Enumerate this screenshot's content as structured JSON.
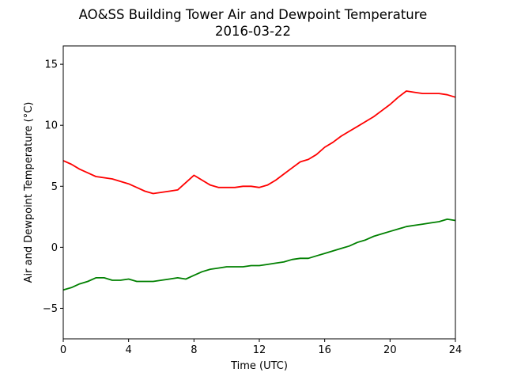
{
  "chart_data": {
    "type": "line",
    "title": "AO&SS Building Tower Air and Dewpoint Temperature",
    "subtitle": "2016-03-22",
    "xlabel": "Time (UTC)",
    "ylabel": "Air and Dewpoint Temperature (°C)",
    "xlim": [
      0,
      24
    ],
    "ylim": [
      -7.5,
      16.5
    ],
    "xticks": [
      0,
      4,
      8,
      12,
      16,
      20,
      24
    ],
    "yticks": [
      -5,
      0,
      5,
      10,
      15
    ],
    "grid": false,
    "series": [
      {
        "color": "#ff0000",
        "x": [
          0,
          0.5,
          1,
          1.5,
          2,
          2.5,
          3,
          3.5,
          4,
          4.5,
          5,
          5.5,
          6,
          6.5,
          7,
          7.5,
          8,
          8.5,
          9,
          9.5,
          10,
          10.5,
          11,
          11.5,
          12,
          12.5,
          13,
          13.5,
          14,
          14.5,
          15,
          15.5,
          16,
          16.5,
          17,
          17.5,
          18,
          18.5,
          19,
          19.5,
          20,
          20.5,
          21,
          21.5,
          22,
          22.5,
          23,
          23.5,
          24
        ],
        "y": [
          7.1,
          6.8,
          6.4,
          6.1,
          5.8,
          5.7,
          5.6,
          5.4,
          5.2,
          4.9,
          4.6,
          4.4,
          4.5,
          4.6,
          4.7,
          5.3,
          5.9,
          5.5,
          5.1,
          4.9,
          4.9,
          4.9,
          5.0,
          5.0,
          4.9,
          5.1,
          5.5,
          6.0,
          6.5,
          7.0,
          7.2,
          7.6,
          8.2,
          8.6,
          9.1,
          9.5,
          9.9,
          10.3,
          10.7,
          11.2,
          11.7,
          12.3,
          12.8,
          12.7,
          12.6,
          12.6,
          12.6,
          12.5,
          12.3
        ]
      },
      {
        "color": "#008000",
        "x": [
          0,
          0.5,
          1,
          1.5,
          2,
          2.5,
          3,
          3.5,
          4,
          4.5,
          5,
          5.5,
          6,
          6.5,
          7,
          7.5,
          8,
          8.5,
          9,
          9.5,
          10,
          10.5,
          11,
          11.5,
          12,
          12.5,
          13,
          13.5,
          14,
          14.5,
          15,
          15.5,
          16,
          16.5,
          17,
          17.5,
          18,
          18.5,
          19,
          19.5,
          20,
          20.5,
          21,
          21.5,
          22,
          22.5,
          23,
          23.5,
          24
        ],
        "y": [
          -3.5,
          -3.3,
          -3.0,
          -2.8,
          -2.5,
          -2.5,
          -2.7,
          -2.7,
          -2.6,
          -2.8,
          -2.8,
          -2.8,
          -2.7,
          -2.6,
          -2.5,
          -2.6,
          -2.3,
          -2.0,
          -1.8,
          -1.7,
          -1.6,
          -1.6,
          -1.6,
          -1.5,
          -1.5,
          -1.4,
          -1.3,
          -1.2,
          -1.0,
          -0.9,
          -0.9,
          -0.7,
          -0.5,
          -0.3,
          -0.1,
          0.1,
          0.4,
          0.6,
          0.9,
          1.1,
          1.3,
          1.5,
          1.7,
          1.8,
          1.9,
          2.0,
          2.1,
          2.3,
          2.2
        ]
      }
    ]
  }
}
